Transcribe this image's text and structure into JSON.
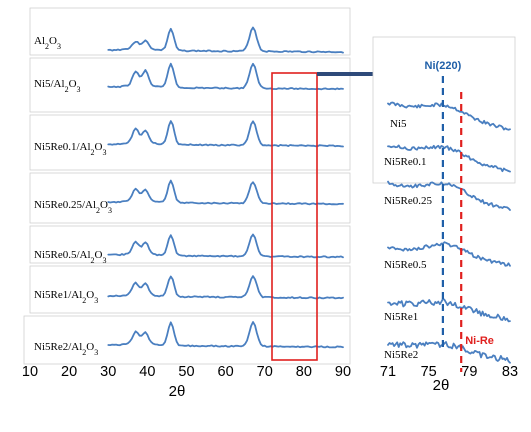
{
  "chart_data": [
    {
      "type": "line",
      "panel": "full-range",
      "xlabel": "2θ",
      "xlim": [
        10,
        90
      ],
      "x_ticks": [
        "10",
        "20",
        "30",
        "40",
        "50",
        "60",
        "70",
        "80",
        "90"
      ],
      "zoom_box_range": [
        72,
        83
      ],
      "series": [
        {
          "name": "Al2O3",
          "sub": "2",
          "sub2": "3",
          "label": [
            "Al",
            "O"
          ],
          "peaks": [
            [
              37,
              0.25
            ],
            [
              39.5,
              0.3
            ],
            [
              46,
              0.9
            ],
            [
              67,
              1.0
            ]
          ]
        },
        {
          "name": "Ni5/Al2O3",
          "label": [
            "Ni5/Al",
            "O"
          ],
          "peaks": [
            [
              37,
              0.55
            ],
            [
              39.5,
              0.6
            ],
            [
              46,
              1.0
            ],
            [
              67,
              1.0
            ]
          ]
        },
        {
          "name": "Ni5Re0.1/Al2O3",
          "label": [
            "Ni5Re0.1/Al",
            "O"
          ],
          "peaks": [
            [
              37,
              0.55
            ],
            [
              39.5,
              0.5
            ],
            [
              46,
              1.0
            ],
            [
              67,
              1.0
            ]
          ]
        },
        {
          "name": "Ni5Re0.25/Al2O3",
          "label": [
            "Ni5Re0.25/Al",
            "O"
          ],
          "peaks": [
            [
              37,
              0.45
            ],
            [
              39.5,
              0.45
            ],
            [
              46,
              0.9
            ],
            [
              67,
              0.9
            ]
          ]
        },
        {
          "name": "Ni5Re0.5/Al2O3",
          "label": [
            "Ni5Re0.5/Al",
            "O"
          ],
          "peaks": [
            [
              37,
              0.45
            ],
            [
              39.5,
              0.45
            ],
            [
              46,
              0.85
            ],
            [
              67,
              0.9
            ]
          ]
        },
        {
          "name": "Ni5Re1/Al2O3",
          "label": [
            "Ni5Re1/Al",
            "O"
          ],
          "peaks": [
            [
              37,
              0.45
            ],
            [
              39.5,
              0.45
            ],
            [
              46,
              0.85
            ],
            [
              67,
              0.9
            ]
          ]
        },
        {
          "name": "Ni5Re2/Al2O3",
          "label": [
            "Ni5Re2/Al",
            "O"
          ],
          "peaks": [
            [
              37,
              0.45
            ],
            [
              39.5,
              0.45
            ],
            [
              46,
              0.95
            ],
            [
              67,
              1.0
            ]
          ]
        }
      ]
    },
    {
      "type": "line",
      "panel": "zoom",
      "xlabel": "2θ",
      "xlim": [
        71,
        83
      ],
      "x_ticks": [
        "71",
        "75",
        "79",
        "83"
      ],
      "reference_lines": [
        {
          "label": "Ni(220)",
          "x": 76.4,
          "color": "#1f5fa8"
        },
        {
          "label": "Ni-Re",
          "x": 78.2,
          "color": "#e0201e"
        }
      ],
      "series": [
        {
          "name": "Ni5"
        },
        {
          "name": "Ni5Re0.1"
        },
        {
          "name": "Ni5Re0.25"
        },
        {
          "name": "Ni5Re0.5"
        },
        {
          "name": "Ni5Re1"
        },
        {
          "name": "Ni5Re2"
        }
      ]
    }
  ],
  "colors": {
    "trace": "#4a7fc0",
    "zoom_box": "#e0201e",
    "arrow": "#2e4a7a",
    "ni_line": "#1f5fa8",
    "nire_line": "#e0201e"
  }
}
